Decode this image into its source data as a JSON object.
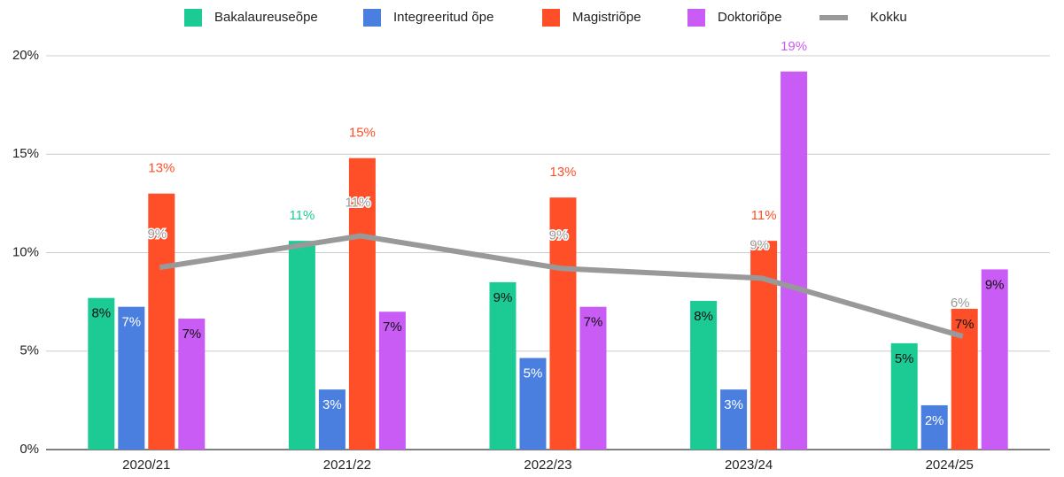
{
  "chart_data": {
    "type": "bar",
    "categories": [
      "2020/21",
      "2021/22",
      "2022/23",
      "2023/24",
      "2024/25"
    ],
    "series": [
      {
        "name": "Bakalaureuseõpe",
        "color": "#1ccb94",
        "values": [
          7.7,
          10.6,
          8.5,
          7.55,
          5.4
        ],
        "value_labels": [
          "8%",
          "11%",
          "9%",
          "8%",
          "5%"
        ]
      },
      {
        "name": "Integreeritud õpe",
        "color": "#4a7fe0",
        "values": [
          7.25,
          3.05,
          4.65,
          3.05,
          2.25
        ],
        "value_labels": [
          "7%",
          "3%",
          "5%",
          "3%",
          "2%"
        ]
      },
      {
        "name": "Magistriõpe",
        "color": "#ff4f28",
        "values": [
          13.0,
          14.8,
          12.8,
          10.6,
          7.15
        ],
        "value_labels": [
          "13%",
          "15%",
          "13%",
          "11%",
          "7%"
        ]
      },
      {
        "name": "Doktoriõpe",
        "color": "#c85cf5",
        "values": [
          6.65,
          7.0,
          7.25,
          19.2,
          9.15
        ],
        "value_labels": [
          "7%",
          "7%",
          "7%",
          "19%",
          "9%"
        ]
      },
      {
        "name": "Kokku",
        "type": "line",
        "color": "#999999",
        "values": [
          9.25,
          10.85,
          9.2,
          8.7,
          5.75
        ],
        "value_labels": [
          "9%",
          "11%",
          "9%",
          "9%",
          "6%"
        ]
      }
    ],
    "ylim": [
      0,
      20
    ],
    "yticks": [
      {
        "value": 0,
        "label": "0%"
      },
      {
        "value": 5,
        "label": "5%"
      },
      {
        "value": 10,
        "label": "10%"
      },
      {
        "value": 15,
        "label": "15%"
      },
      {
        "value": 20,
        "label": "20%"
      }
    ],
    "grid": true,
    "legend": "top"
  }
}
